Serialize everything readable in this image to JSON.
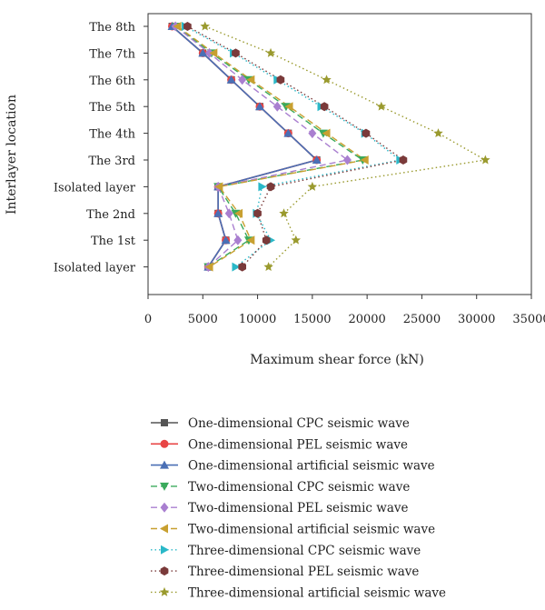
{
  "chart_data": {
    "type": "line",
    "xlabel": "Maximum shear force (kN)",
    "ylabel": "Interlayer location",
    "xlim": [
      0,
      35000
    ],
    "xticks": [
      0,
      5000,
      10000,
      15000,
      20000,
      25000,
      30000,
      35000
    ],
    "categories": [
      "The 8th",
      "The 7th",
      "The 6th",
      "The 5th",
      "The 4th",
      "The 3rd",
      "Isolated layer",
      "The 2nd",
      "The 1st",
      "Isolated layer"
    ],
    "grid": false,
    "legend_position": "bottom",
    "series": [
      {
        "name": "One-dimensional CPC seismic wave",
        "color": "#555555",
        "marker": "square",
        "dash": "solid",
        "values": [
          2200,
          5000,
          7600,
          10200,
          12800,
          15400,
          6400,
          6400,
          7100,
          5500
        ]
      },
      {
        "name": "One-dimensional PEL seismic wave",
        "color": "#e84545",
        "marker": "circle",
        "dash": "solid",
        "values": [
          2200,
          5000,
          7600,
          10200,
          12800,
          15400,
          6400,
          6400,
          7100,
          5500
        ]
      },
      {
        "name": "One-dimensional artificial seismic wave",
        "color": "#4a6fb5",
        "marker": "triangle-up",
        "dash": "solid",
        "values": [
          2200,
          5000,
          7600,
          10200,
          12800,
          15400,
          6400,
          6400,
          7100,
          5500
        ]
      },
      {
        "name": "Two-dimensional CPC seismic wave",
        "color": "#3aaa5c",
        "marker": "triangle-down",
        "dash": "dashed",
        "values": [
          2600,
          5800,
          9200,
          12600,
          16000,
          19600,
          6400,
          8000,
          9200,
          5500
        ]
      },
      {
        "name": "Two-dimensional PEL seismic wave",
        "color": "#a97fd0",
        "marker": "diamond",
        "dash": "dashed",
        "values": [
          2500,
          5600,
          8600,
          11800,
          15000,
          18200,
          6400,
          7400,
          8200,
          5500
        ]
      },
      {
        "name": "Two-dimensional artificial seismic wave",
        "color": "#c8a030",
        "marker": "triangle-left",
        "dash": "dashed",
        "values": [
          2700,
          6000,
          9400,
          12900,
          16300,
          19800,
          6500,
          8300,
          9400,
          5600
        ]
      },
      {
        "name": "Three-dimensional CPC seismic wave",
        "color": "#2ab8c8",
        "marker": "triangle-right",
        "dash": "dotted",
        "values": [
          3400,
          7800,
          11800,
          15800,
          19800,
          23000,
          10400,
          9900,
          11200,
          8000
        ]
      },
      {
        "name": "Three-dimensional PEL seismic wave",
        "color": "#7a3a3a",
        "marker": "hexagon",
        "dash": "dotted",
        "values": [
          3600,
          8000,
          12100,
          16100,
          19900,
          23300,
          11200,
          10000,
          10800,
          8600
        ]
      },
      {
        "name": "Three-dimensional artificial seismic wave",
        "color": "#9a9a2e",
        "marker": "star",
        "dash": "dotted",
        "values": [
          5200,
          11200,
          16300,
          21300,
          26500,
          30800,
          15000,
          12400,
          13500,
          11000
        ]
      }
    ]
  }
}
